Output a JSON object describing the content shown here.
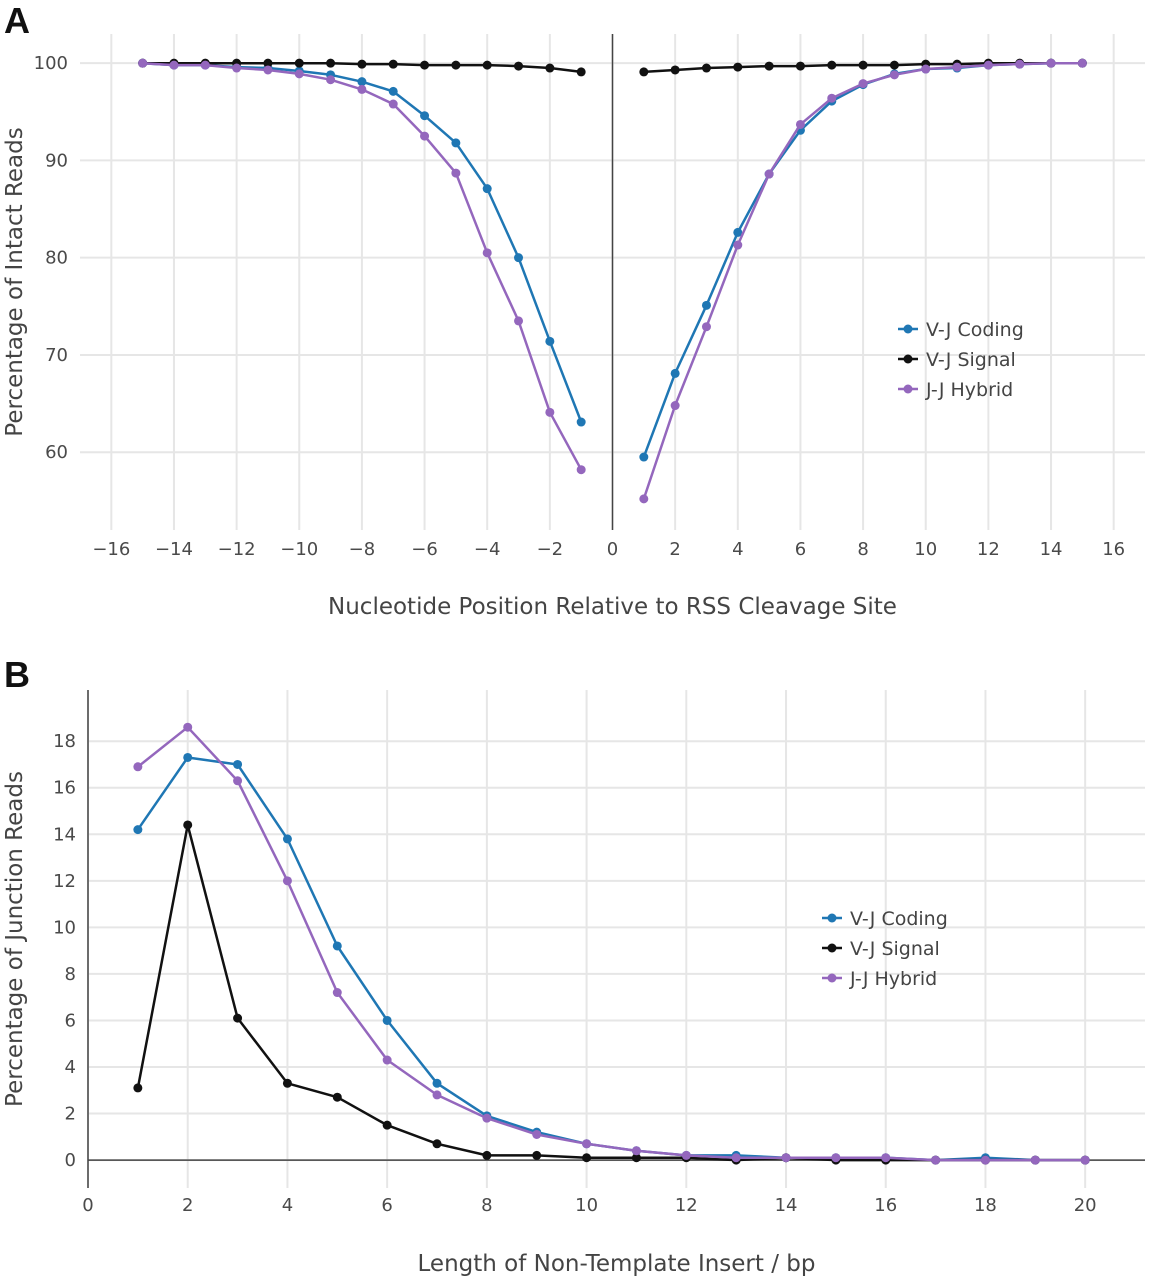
{
  "panels": {
    "a_label": "A",
    "b_label": "B"
  },
  "chart_data": [
    {
      "type": "line",
      "panel": "A",
      "title": "",
      "xlabel": "Nucleotide Position Relative to RSS Cleavage Site",
      "ylabel": "Percentage of Intact Reads",
      "xlim": [
        -17,
        17
      ],
      "ylim": [
        52,
        103
      ],
      "xticks": [
        -16,
        -14,
        -12,
        -10,
        -8,
        -6,
        -4,
        -2,
        0,
        2,
        4,
        6,
        8,
        10,
        12,
        14,
        16
      ],
      "xtick_labels": [
        "−16",
        "−14",
        "−12",
        "−10",
        "−8",
        "−6",
        "−4",
        "−2",
        "0",
        "2",
        "4",
        "6",
        "8",
        "10",
        "12",
        "14",
        "16"
      ],
      "yticks": [
        60,
        70,
        80,
        90,
        100
      ],
      "ytick_labels": [
        "60",
        "70",
        "80",
        "90",
        "100"
      ],
      "vline_x": 0,
      "legend_position": "right",
      "series": [
        {
          "name": "V-J Coding",
          "color": "#1f77b4",
          "segments": [
            {
              "x": [
                -15,
                -14,
                -13,
                -12,
                -11,
                -10,
                -9,
                -8,
                -7,
                -6,
                -5,
                -4,
                -3,
                -2,
                -1
              ],
              "y": [
                100,
                99.8,
                99.8,
                99.6,
                99.5,
                99.2,
                98.8,
                98.1,
                97.1,
                94.6,
                91.8,
                87.1,
                80.0,
                71.4,
                63.1
              ]
            },
            {
              "x": [
                1,
                2,
                3,
                4,
                5,
                6,
                7,
                8,
                9,
                10,
                11,
                12,
                13,
                14,
                15
              ],
              "y": [
                59.5,
                68.1,
                75.1,
                82.6,
                88.6,
                93.1,
                96.1,
                97.8,
                98.9,
                99.4,
                99.5,
                99.8,
                99.9,
                100,
                100
              ]
            }
          ]
        },
        {
          "name": "V-J Signal",
          "color": "#111111",
          "segments": [
            {
              "x": [
                -15,
                -14,
                -13,
                -12,
                -11,
                -10,
                -9,
                -8,
                -7,
                -6,
                -5,
                -4,
                -3,
                -2,
                -1
              ],
              "y": [
                100,
                100,
                100,
                100,
                100,
                100,
                100,
                99.9,
                99.9,
                99.8,
                99.8,
                99.8,
                99.7,
                99.5,
                99.1
              ]
            },
            {
              "x": [
                1,
                2,
                3,
                4,
                5,
                6,
                7,
                8,
                9,
                10,
                11,
                12,
                13,
                14,
                15
              ],
              "y": [
                99.1,
                99.3,
                99.5,
                99.6,
                99.7,
                99.7,
                99.8,
                99.8,
                99.8,
                99.9,
                99.9,
                100,
                100,
                100,
                100
              ]
            }
          ]
        },
        {
          "name": "J-J Hybrid",
          "color": "#9467bd",
          "segments": [
            {
              "x": [
                -15,
                -14,
                -13,
                -12,
                -11,
                -10,
                -9,
                -8,
                -7,
                -6,
                -5,
                -4,
                -3,
                -2,
                -1
              ],
              "y": [
                100,
                99.8,
                99.8,
                99.5,
                99.3,
                98.9,
                98.3,
                97.3,
                95.8,
                92.5,
                88.7,
                80.5,
                73.5,
                64.1,
                58.2
              ]
            },
            {
              "x": [
                1,
                2,
                3,
                4,
                5,
                6,
                7,
                8,
                9,
                10,
                11,
                12,
                13,
                14,
                15
              ],
              "y": [
                55.2,
                64.8,
                72.9,
                81.3,
                88.6,
                93.7,
                96.4,
                97.9,
                98.8,
                99.4,
                99.6,
                99.8,
                99.9,
                100,
                100
              ]
            }
          ]
        }
      ]
    },
    {
      "type": "line",
      "panel": "B",
      "title": "",
      "xlabel": "Length of Non-Template Insert / bp",
      "ylabel": "Percentage of Junction Reads",
      "xlim": [
        0,
        21.2
      ],
      "ylim": [
        -1.2,
        20.2
      ],
      "xticks": [
        0,
        2,
        4,
        6,
        8,
        10,
        12,
        14,
        16,
        18,
        20
      ],
      "xtick_labels": [
        "0",
        "2",
        "4",
        "6",
        "8",
        "10",
        "12",
        "14",
        "16",
        "18",
        "20"
      ],
      "yticks": [
        0,
        2,
        4,
        6,
        8,
        10,
        12,
        14,
        16,
        18
      ],
      "ytick_labels": [
        "0",
        "2",
        "4",
        "6",
        "8",
        "10",
        "12",
        "14",
        "16",
        "18"
      ],
      "zero_line": true,
      "legend_position": "right",
      "series": [
        {
          "name": "V-J Coding",
          "color": "#1f77b4",
          "segments": [
            {
              "x": [
                1,
                2,
                3,
                4,
                5,
                6,
                7,
                8,
                9,
                10,
                11,
                12,
                13,
                14,
                15,
                16,
                17,
                18,
                19,
                20
              ],
              "y": [
                14.2,
                17.3,
                17.0,
                13.8,
                9.2,
                6.0,
                3.3,
                1.9,
                1.2,
                0.7,
                0.4,
                0.2,
                0.2,
                0.1,
                0.1,
                0.1,
                0.0,
                0.1,
                0.0,
                0.0
              ]
            }
          ]
        },
        {
          "name": "V-J Signal",
          "color": "#111111",
          "segments": [
            {
              "x": [
                1,
                2,
                3,
                4,
                5,
                6,
                7,
                8,
                9,
                10,
                11,
                12,
                13,
                14,
                15,
                16,
                17,
                18,
                19,
                20
              ],
              "y": [
                3.1,
                14.4,
                6.1,
                3.3,
                2.7,
                1.5,
                0.7,
                0.2,
                0.2,
                0.1,
                0.1,
                0.1,
                0.0,
                0.1,
                0.0,
                0.0,
                0.0,
                0.0,
                0.0,
                0.0
              ]
            }
          ]
        },
        {
          "name": "J-J Hybrid",
          "color": "#9467bd",
          "segments": [
            {
              "x": [
                1,
                2,
                3,
                4,
                5,
                6,
                7,
                8,
                9,
                10,
                11,
                12,
                13,
                14,
                15,
                16,
                17,
                18,
                19,
                20
              ],
              "y": [
                16.9,
                18.6,
                16.3,
                12.0,
                7.2,
                4.3,
                2.8,
                1.8,
                1.1,
                0.7,
                0.4,
                0.2,
                0.1,
                0.1,
                0.1,
                0.1,
                0.0,
                0.0,
                0.0,
                0.0
              ]
            }
          ]
        }
      ]
    }
  ]
}
